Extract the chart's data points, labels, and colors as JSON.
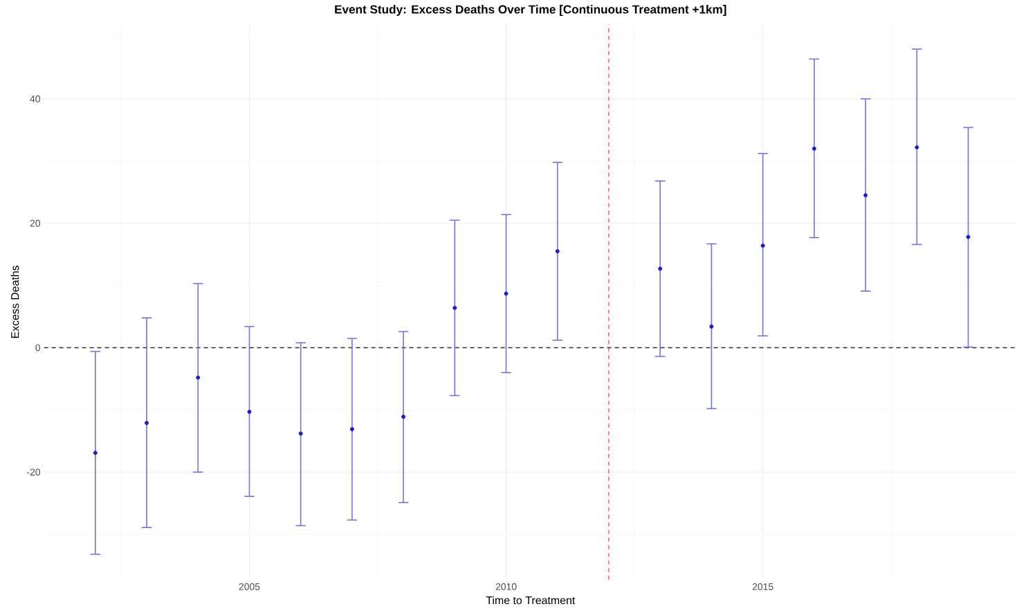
{
  "chart_data": {
    "type": "scatter",
    "title": "Event Study: Excess Deaths Over Time [Continuous Treatment +1km]",
    "xlabel": "Time to Treatment",
    "ylabel": "Excess Deaths",
    "x": [
      2002,
      2003,
      2004,
      2005,
      2006,
      2007,
      2008,
      2009,
      2010,
      2011,
      2013,
      2014,
      2015,
      2016,
      2017,
      2018,
      2019
    ],
    "values": [
      -16.9,
      -12.1,
      -4.8,
      -10.3,
      -13.8,
      -13.1,
      -11.1,
      6.4,
      8.7,
      15.5,
      12.7,
      3.4,
      16.4,
      32.0,
      24.5,
      32.2,
      17.8
    ],
    "errors": [
      [
        -33.2,
        -0.6
      ],
      [
        -28.9,
        4.8
      ],
      [
        -20.0,
        10.3
      ],
      [
        -23.9,
        3.4
      ],
      [
        -28.6,
        0.8
      ],
      [
        -27.7,
        1.5
      ],
      [
        -24.9,
        2.6
      ],
      [
        -7.7,
        20.5
      ],
      [
        -4.0,
        21.4
      ],
      [
        1.2,
        29.8
      ],
      [
        -1.4,
        26.8
      ],
      [
        -9.8,
        16.7
      ],
      [
        1.9,
        31.2
      ],
      [
        17.7,
        46.4
      ],
      [
        9.1,
        40.0
      ],
      [
        16.6,
        48.0
      ],
      [
        0.1,
        35.4
      ]
    ],
    "color": "#1f1fb0",
    "marker": "circle",
    "grid": true,
    "xlim": [
      2001,
      2019.95
    ],
    "ylim": [
      -37.3,
      52
    ],
    "xticks": [
      2005,
      2010,
      2015
    ],
    "yticks": [
      -20,
      0,
      20,
      40
    ],
    "ref_lines": [
      {
        "axis": "x",
        "value": 2012,
        "color": "#ff3333",
        "line_style": "dashed"
      },
      {
        "axis": "y",
        "value": 0,
        "color": "#333333",
        "line_style": "dashed"
      }
    ]
  }
}
